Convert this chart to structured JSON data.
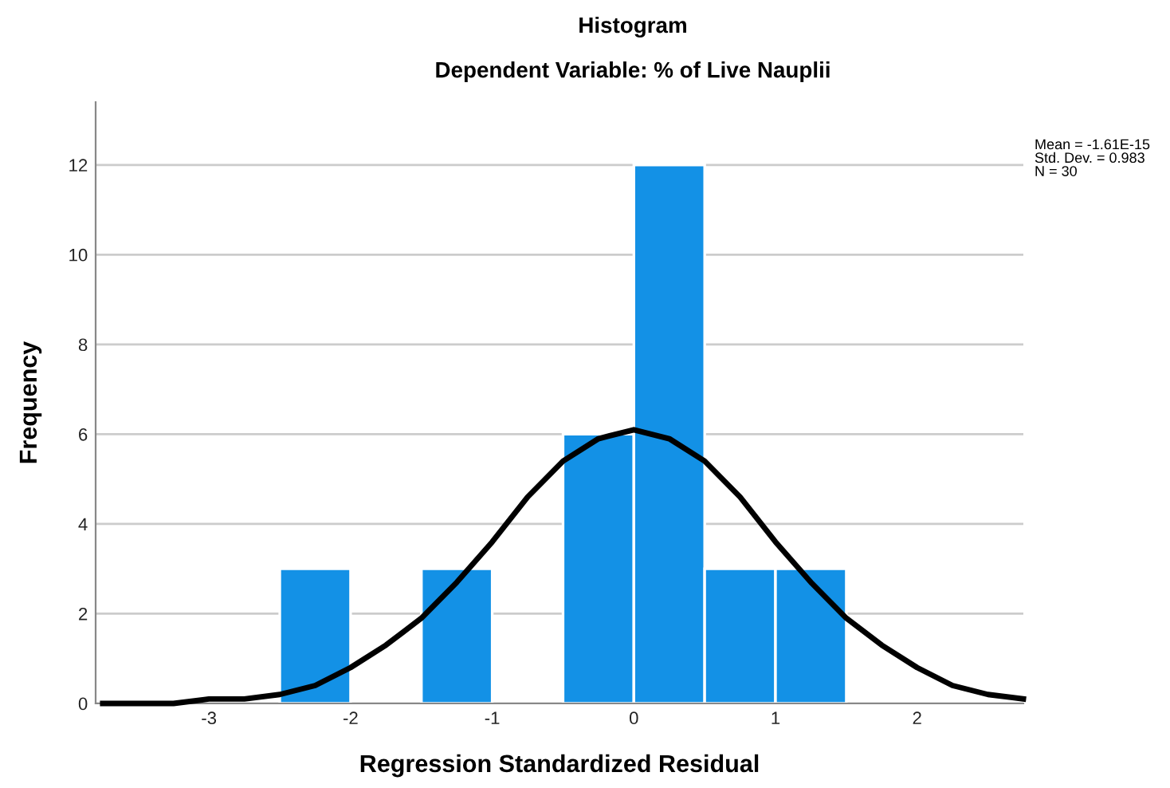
{
  "chart_data": {
    "type": "histogram",
    "title": "Histogram",
    "subtitle": "Dependent Variable: % of Live Nauplii",
    "xlabel": "Regression Standardized Residual",
    "ylabel": "Frequency",
    "bins": [
      -2.5,
      -2,
      -1.5,
      -1,
      -0.5,
      0,
      0.5,
      1,
      1.5
    ],
    "values": [
      3,
      0,
      3,
      0,
      6,
      12,
      3,
      3
    ],
    "color": "#1391e6",
    "series": [
      {
        "type": "line",
        "color": "#000000",
        "x": [
          -3.75,
          -3.5,
          -3.25,
          -3,
          -2.75,
          -2.5,
          -2.25,
          -2,
          -1.75,
          -1.5,
          -1.25,
          -1,
          -0.75,
          -0.5,
          -0.25,
          0,
          0.25,
          0.5,
          0.75,
          1,
          1.25,
          1.5,
          1.75,
          2,
          2.25,
          2.5,
          2.75
        ],
        "values": [
          0.0,
          0.0,
          0.0,
          0.1,
          0.1,
          0.2,
          0.4,
          0.8,
          1.3,
          1.9,
          2.7,
          3.6,
          4.6,
          5.4,
          5.9,
          6.1,
          5.9,
          5.4,
          4.6,
          3.6,
          2.7,
          1.9,
          1.3,
          0.8,
          0.4,
          0.2,
          0.1
        ]
      }
    ],
    "annotations": [
      "Mean = -1.61E-15\nStd. Dev. = 0.983\nN = 30"
    ],
    "xlim": [
      -3.8,
      2.75
    ],
    "ylim": [
      0,
      13.4
    ],
    "xticks": [
      -3,
      -2,
      -1,
      0,
      1,
      2
    ],
    "yticks": [
      0,
      2,
      4,
      6,
      8,
      10,
      12
    ],
    "grid": "y",
    "legend": false,
    "line_style": "solid",
    "marker": "none"
  }
}
